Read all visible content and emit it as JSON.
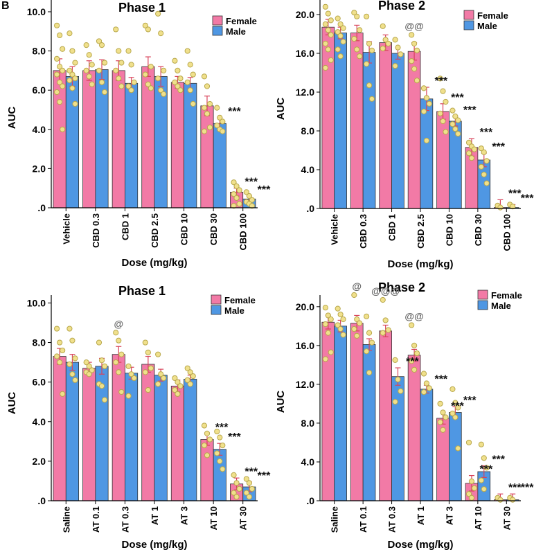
{
  "panel_letter": "B",
  "legend_labels": {
    "female": "Female",
    "male": "Male"
  },
  "colors": {
    "female": "#f27aa6",
    "male": "#4f97e3",
    "dot_fill": "#f0e08c",
    "dot_stroke": "#b8a84c",
    "error": "#d8435a"
  },
  "chart_data": [
    {
      "type": "bar",
      "title": "Phase 1",
      "xlabel": "Dose (mg/kg)",
      "ylabel": "AUC",
      "ylim": [
        0,
        10.6
      ],
      "yticks": [
        ".0",
        "2.0",
        "4.0",
        "6.0",
        "8.0",
        "10.0"
      ],
      "categories": [
        "Vehicle",
        "CBD 0.3",
        "CBD 1",
        "CBD 2.5",
        "CBD 10",
        "CBD 30",
        "CBD 100"
      ],
      "series": [
        {
          "name": "Female",
          "values": [
            7.0,
            7.0,
            7.0,
            7.2,
            6.4,
            5.2,
            0.8
          ],
          "errors": [
            0.6,
            0.5,
            0.5,
            0.5,
            0.3,
            0.5,
            0.2
          ]
        },
        {
          "name": "Male",
          "values": [
            6.7,
            7.05,
            6.35,
            6.7,
            6.35,
            4.3,
            0.45
          ],
          "errors": [
            0.5,
            0.5,
            0.3,
            0.5,
            0.3,
            0.3,
            0.15
          ]
        }
      ],
      "points": [
        [
          [
            9.3,
            8.8,
            8.1,
            7.6,
            7.2,
            7.0,
            6.8,
            6.4,
            6.2,
            5.9,
            5.4,
            4.0
          ],
          [
            8.9,
            8.0,
            7.4,
            7.0,
            6.8,
            6.6,
            6.5,
            6.1,
            5.3
          ]
        ],
        [
          [
            8.3,
            7.8,
            7.3,
            7.0,
            6.7,
            6.3
          ],
          [
            8.5,
            8.3,
            7.4,
            7.0,
            6.4,
            5.9
          ]
        ],
        [
          [
            9.1,
            8.0,
            7.4,
            7.0,
            6.6,
            6.2
          ],
          [
            8.0,
            7.3,
            6.4,
            6.2,
            6.0
          ]
        ],
        [
          [
            9.3,
            9.1,
            7.2,
            6.8,
            6.3,
            6.1
          ],
          [
            9.9,
            8.9,
            7.0,
            6.6,
            6.0,
            5.8
          ]
        ],
        [
          [
            7.5,
            7.0,
            6.6,
            6.4,
            6.2,
            6.0
          ],
          [
            8.0,
            7.3,
            6.8,
            6.4,
            6.0,
            5.3
          ]
        ],
        [
          [
            6.7,
            6.2,
            5.3,
            5.1,
            4.8,
            4.1,
            3.9
          ],
          [
            5.1,
            4.6,
            4.4,
            4.2,
            4.0,
            3.9
          ]
        ],
        [
          [
            1.3,
            1.1,
            0.9,
            0.7,
            0.5,
            0.2,
            0.1
          ],
          [
            0.8,
            0.6,
            0.4,
            0.3,
            0.2,
            0.1
          ]
        ]
      ],
      "annotations": [
        {
          "category": 5,
          "series": 1,
          "text": "***"
        },
        {
          "category": 6,
          "series": 0,
          "text": "***"
        },
        {
          "category": 6,
          "series": 1,
          "text": "***"
        }
      ]
    },
    {
      "type": "bar",
      "title": "Phase 2",
      "xlabel": "Dose (mg/kg)",
      "ylabel": "AUC",
      "ylim": [
        0,
        21.5
      ],
      "yticks": [
        ".0",
        "4.0",
        "8.0",
        "12.0",
        "16.0",
        "20.0"
      ],
      "categories": [
        "Vehicle",
        "CBD 0.3",
        "CBD 1",
        "CBD 2.5",
        "CBD 10",
        "CBD 30",
        "CBD 100"
      ],
      "series": [
        {
          "name": "Female",
          "values": [
            18.7,
            18.1,
            17.1,
            16.2,
            10.0,
            6.3,
            0.1
          ],
          "errors": [
            0.8,
            0.8,
            0.8,
            0.9,
            0.8,
            0.9,
            0.8
          ]
        },
        {
          "name": "Male",
          "values": [
            18.1,
            16.1,
            16.0,
            11.3,
            9.0,
            5.0,
            0.1
          ],
          "errors": [
            0.6,
            1.1,
            0.6,
            1.2,
            0.5,
            0.7,
            0.3
          ]
        }
      ],
      "points": [
        [
          [
            20.8,
            20.1,
            19.4,
            19.0,
            18.4,
            17.9,
            17.0,
            16.4,
            15.3,
            14.5
          ],
          [
            19.6,
            19.0,
            18.6,
            18.2,
            17.8,
            17.2,
            16.4,
            15.7
          ]
        ],
        [
          [
            20.2,
            19.8,
            18.4,
            17.5,
            16.4,
            15.7
          ],
          [
            19.8,
            17.0,
            16.3,
            14.9,
            12.7,
            11.3
          ]
        ],
        [
          [
            18.8,
            17.4,
            17.0,
            16.5
          ],
          [
            17.4,
            16.6,
            15.9,
            14.7
          ]
        ],
        [
          [
            17.9,
            17.0,
            16.3,
            15.2,
            14.4,
            13.2
          ],
          [
            12.4,
            11.4,
            10.8,
            10.0,
            7.0
          ]
        ],
        [
          [
            13.4,
            12.1,
            11.0,
            9.8,
            9.0,
            7.9
          ],
          [
            10.1,
            9.5,
            9.1,
            8.7,
            8.2,
            7.7
          ]
        ],
        [
          [
            6.8,
            6.4,
            6.1,
            5.7,
            5.2
          ],
          [
            6.2,
            5.8,
            4.9,
            4.3,
            3.5,
            2.6
          ]
        ],
        [
          [
            0.3,
            0.1
          ],
          [
            0.4,
            0.2
          ]
        ]
      ],
      "annotations": [
        {
          "category": 3,
          "series": 0,
          "text": "@@"
        },
        {
          "category": 3,
          "series": 1,
          "text": "***"
        },
        {
          "category": 4,
          "series": 0,
          "text": "***"
        },
        {
          "category": 4,
          "series": 1,
          "text": "***"
        },
        {
          "category": 5,
          "series": 0,
          "text": "***"
        },
        {
          "category": 5,
          "series": 1,
          "text": "***"
        },
        {
          "category": 6,
          "series": 0,
          "text": "***"
        },
        {
          "category": 6,
          "series": 1,
          "text": "***"
        }
      ]
    },
    {
      "type": "bar",
      "title": "Phase 1",
      "xlabel": "Dose (mg/kg)",
      "ylabel": "AUC",
      "ylim": [
        0,
        10.4
      ],
      "yticks": [
        ".0",
        "2.0",
        "4.0",
        "6.0",
        "8.0",
        "10.0"
      ],
      "categories": [
        "Saline",
        "AT 0.1",
        "AT 0.3",
        "AT 1",
        "AT 3",
        "AT 10",
        "AT 30"
      ],
      "series": [
        {
          "name": "Female",
          "values": [
            7.3,
            6.7,
            7.4,
            6.9,
            5.8,
            3.1,
            0.85
          ],
          "errors": [
            0.4,
            0.3,
            0.4,
            0.4,
            0.3,
            0.3,
            0.3
          ]
        },
        {
          "name": "Male",
          "values": [
            7.0,
            6.8,
            6.45,
            6.35,
            6.15,
            2.6,
            0.7
          ],
          "errors": [
            0.4,
            0.4,
            0.3,
            0.3,
            0.2,
            0.3,
            0.25
          ]
        }
      ],
      "points": [
        [
          [
            8.7,
            8.0,
            7.6,
            7.3,
            7.0,
            5.4
          ],
          [
            8.7,
            8.1,
            7.2,
            6.9,
            6.4,
            6.1
          ]
        ],
        [
          [
            7.0,
            6.8,
            6.6,
            6.5,
            6.4
          ],
          [
            8.0,
            7.1,
            6.8,
            5.9,
            5.8,
            5.1
          ]
        ],
        [
          [
            8.5,
            8.1,
            7.4,
            7.0,
            6.5,
            5.5
          ],
          [
            6.8,
            6.4,
            6.2,
            5.3
          ]
        ],
        [
          [
            8.0,
            7.5,
            6.7,
            6.5,
            5.6
          ],
          [
            7.4,
            6.4,
            6.2,
            5.9
          ]
        ],
        [
          [
            6.2,
            6.0,
            5.8,
            5.6,
            5.4
          ],
          [
            6.7,
            6.5,
            6.3,
            6.1,
            5.9
          ]
        ],
        [
          [
            3.8,
            3.4,
            3.1,
            2.8,
            2.3
          ],
          [
            3.5,
            3.2,
            2.8,
            2.4,
            2.0,
            1.6
          ]
        ],
        [
          [
            1.3,
            0.9,
            0.6,
            0.4,
            0.2
          ],
          [
            1.1,
            0.9,
            0.6,
            0.4,
            0.2
          ]
        ]
      ],
      "annotations": [
        {
          "category": 2,
          "series": 0,
          "text": "@"
        },
        {
          "category": 5,
          "series": 0,
          "text": "***"
        },
        {
          "category": 5,
          "series": 1,
          "text": "***"
        },
        {
          "category": 6,
          "series": 0,
          "text": "***"
        },
        {
          "category": 6,
          "series": 1,
          "text": "***"
        }
      ]
    },
    {
      "type": "bar",
      "title": "Phase 2",
      "xlabel": "Dose (mg/kg)",
      "ylabel": "AUC",
      "ylim": [
        0,
        21.2
      ],
      "yticks": [
        ".0",
        "4.0",
        "8.0",
        "12.0",
        "16.0",
        "20.0"
      ],
      "categories": [
        "Saline",
        "AT 0.1",
        "AT 0.3",
        "AT 1",
        "AT 3",
        "AT 10",
        "AT 30"
      ],
      "series": [
        {
          "name": "Female",
          "values": [
            18.4,
            18.3,
            17.5,
            15.0,
            8.5,
            1.8,
            0.1
          ],
          "errors": [
            0.7,
            0.8,
            0.6,
            0.6,
            0.6,
            0.8,
            0.6
          ]
        },
        {
          "name": "Male",
          "values": [
            18.0,
            16.1,
            12.8,
            11.5,
            9.1,
            3.0,
            0.1
          ],
          "errors": [
            0.6,
            0.6,
            0.9,
            0.4,
            0.6,
            0.6,
            0.6
          ]
        }
      ],
      "points": [
        [
          [
            19.9,
            19.1,
            18.7,
            18.2,
            17.3,
            15.3,
            14.6
          ],
          [
            19.8,
            19.2,
            18.7,
            18.1,
            17.7,
            17.1
          ]
        ],
        [
          [
            21.2,
            18.7,
            18.3,
            17.7,
            17.0
          ],
          [
            19.0,
            17.3,
            16.3,
            15.4,
            13.2
          ]
        ],
        [
          [
            20.7,
            18.6,
            17.6,
            17.3
          ],
          [
            14.5,
            12.5,
            11.3,
            10.2
          ]
        ],
        [
          [
            18.1,
            16.0,
            15.2,
            14.4,
            13.5
          ],
          [
            13.1,
            12.1,
            11.6,
            11.2
          ]
        ],
        [
          [
            10.0,
            9.1,
            8.6,
            8.1,
            7.3
          ],
          [
            11.5,
            10.1,
            9.6,
            9.0,
            8.6,
            5.4
          ]
        ],
        [
          [
            6.0,
            2.0,
            1.3,
            0.7,
            0.3
          ],
          [
            5.8,
            4.4,
            3.4,
            2.1,
            1.2
          ]
        ],
        [
          [
            0.3,
            0.1
          ],
          [
            0.3,
            0.1
          ]
        ]
      ],
      "annotations": [
        {
          "category": 1,
          "series": 0,
          "text": "@"
        },
        {
          "category": 2,
          "series": 0,
          "text": "@@@"
        },
        {
          "category": 2,
          "series": 1,
          "text": "***"
        },
        {
          "category": 3,
          "series": 0,
          "text": "@@"
        },
        {
          "category": 3,
          "series": 1,
          "text": "***"
        },
        {
          "category": 4,
          "series": 0,
          "text": "***"
        },
        {
          "category": 4,
          "series": 1,
          "text": "***"
        },
        {
          "category": 5,
          "series": 0,
          "text": "***"
        },
        {
          "category": 5,
          "series": 1,
          "text": "***"
        },
        {
          "category": 6,
          "series": 0,
          "text": "***"
        },
        {
          "category": 6,
          "series": 1,
          "text": "***"
        }
      ]
    }
  ]
}
